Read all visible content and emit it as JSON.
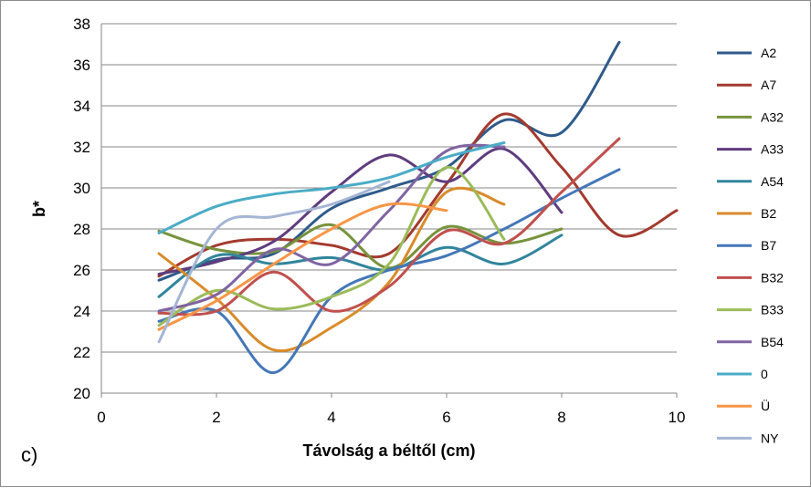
{
  "panel_label": "c)",
  "chart_data": {
    "type": "line",
    "xlabel": "Távolság a béltől (cm)",
    "ylabel": "b*",
    "xlim": [
      0,
      10
    ],
    "ylim": [
      20,
      38
    ],
    "x_ticks": [
      0,
      2,
      4,
      6,
      8,
      10
    ],
    "y_ticks": [
      20,
      22,
      24,
      26,
      28,
      30,
      32,
      34,
      36,
      38
    ],
    "grid": "horizontal",
    "legend_position": "right",
    "smoothed": true,
    "series": [
      {
        "name": "A2",
        "color": "#2e5a8a",
        "x": [
          1,
          2,
          3,
          4,
          5,
          6,
          7,
          8,
          9
        ],
        "values": [
          25.5,
          26.5,
          26.8,
          29.0,
          30.0,
          31.0,
          33.3,
          32.7,
          37.1
        ]
      },
      {
        "name": "A7",
        "color": "#a33a2e",
        "x": [
          1,
          2,
          3,
          4,
          5,
          6,
          7,
          8,
          9,
          10
        ],
        "values": [
          25.7,
          27.2,
          27.5,
          27.2,
          26.8,
          30.2,
          33.6,
          31.0,
          27.7,
          28.9
        ]
      },
      {
        "name": "A32",
        "color": "#77933c",
        "x": [
          1,
          2,
          3,
          4,
          5,
          6,
          7,
          8
        ],
        "values": [
          27.9,
          27.0,
          26.9,
          28.2,
          26.1,
          28.1,
          27.3,
          28.0
        ]
      },
      {
        "name": "A33",
        "color": "#5f3c7e",
        "x": [
          1,
          2,
          3,
          4,
          5,
          6,
          7,
          8
        ],
        "values": [
          25.8,
          26.4,
          27.4,
          29.8,
          31.6,
          30.3,
          31.9,
          28.8
        ]
      },
      {
        "name": "A54",
        "color": "#31859c",
        "x": [
          1,
          2,
          3,
          4,
          5,
          6,
          7,
          8
        ],
        "values": [
          24.7,
          26.7,
          26.3,
          26.6,
          26.0,
          27.1,
          26.3,
          27.7
        ]
      },
      {
        "name": "B2",
        "color": "#d98b2a",
        "x": [
          1,
          2,
          3,
          4,
          5,
          6,
          7
        ],
        "values": [
          26.8,
          24.6,
          22.1,
          23.2,
          25.4,
          29.8,
          29.2
        ]
      },
      {
        "name": "B7",
        "color": "#4477b8",
        "x": [
          1,
          2,
          3,
          4,
          5,
          6,
          7,
          8,
          9
        ],
        "values": [
          23.5,
          24.0,
          21.0,
          24.7,
          26.0,
          26.7,
          28.0,
          29.5,
          30.9
        ]
      },
      {
        "name": "B32",
        "color": "#c0504d",
        "x": [
          1,
          2,
          3,
          4,
          5,
          6,
          7,
          8,
          9
        ],
        "values": [
          23.9,
          24.0,
          25.9,
          24.0,
          25.2,
          27.9,
          27.3,
          29.8,
          32.4
        ]
      },
      {
        "name": "B33",
        "color": "#9bbb59",
        "x": [
          1,
          2,
          3,
          4,
          5,
          6,
          7
        ],
        "values": [
          23.3,
          25.0,
          24.1,
          24.7,
          26.3,
          31.0,
          27.5
        ]
      },
      {
        "name": "B54",
        "color": "#8064a2",
        "x": [
          1,
          2,
          3,
          4,
          5,
          6,
          7
        ],
        "values": [
          24.0,
          24.8,
          27.0,
          26.3,
          28.9,
          31.8,
          32.0
        ]
      },
      {
        "name": "0",
        "color": "#4bacc6",
        "x": [
          1,
          2,
          3,
          4,
          5,
          6,
          7
        ],
        "values": [
          27.8,
          29.1,
          29.7,
          30.0,
          30.5,
          31.5,
          32.2
        ]
      },
      {
        "name": "Ü",
        "color": "#f79646",
        "x": [
          1,
          2,
          3,
          4,
          5,
          6
        ],
        "values": [
          23.1,
          24.5,
          26.3,
          28.0,
          29.2,
          28.9
        ]
      },
      {
        "name": "NY",
        "color": "#a5b5d4",
        "x": [
          1,
          2,
          3,
          4,
          5
        ],
        "values": [
          22.5,
          28.0,
          28.6,
          29.2,
          30.3
        ]
      }
    ]
  }
}
